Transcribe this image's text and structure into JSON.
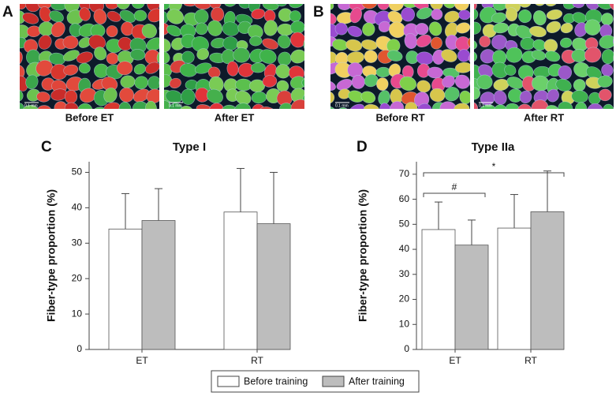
{
  "panels": [
    {
      "label": "A",
      "captions": [
        "Before ET",
        "After ET"
      ]
    },
    {
      "label": "B",
      "captions": [
        "Before RT",
        "After RT"
      ]
    }
  ],
  "scale_label": "0.1 mm",
  "chart_data": [
    {
      "type": "bar",
      "panel": "C",
      "title": "Type I",
      "ylabel": "Fiber-type proportion (%)",
      "categories": [
        "ET",
        "RT"
      ],
      "series": [
        {
          "name": "Before training",
          "color": "#ffffff",
          "values": [
            34,
            38.8
          ],
          "errors": [
            10,
            12.3
          ]
        },
        {
          "name": "After training",
          "color": "#bdbdbd",
          "values": [
            36.4,
            35.5
          ],
          "errors": [
            9,
            14.5
          ]
        }
      ],
      "ylim": [
        0,
        53
      ],
      "yticks": [
        0,
        10,
        20,
        30,
        40,
        50
      ]
    },
    {
      "type": "bar",
      "panel": "D",
      "title": "Type IIa",
      "ylabel": "Fiber-type proportion (%)",
      "categories": [
        "ET",
        "RT"
      ],
      "series": [
        {
          "color": "#ffffff",
          "values": [
            47.9,
            48.5
          ],
          "errors": [
            11,
            13.4
          ]
        },
        {
          "color": "#bdbdbd",
          "values": [
            41.7,
            55
          ],
          "errors": [
            10,
            16.3
          ]
        }
      ],
      "ylim": [
        0,
        75
      ],
      "yticks": [
        0,
        10,
        20,
        30,
        40,
        50,
        60,
        70
      ],
      "annotations": [
        "#",
        "*"
      ]
    }
  ]
}
